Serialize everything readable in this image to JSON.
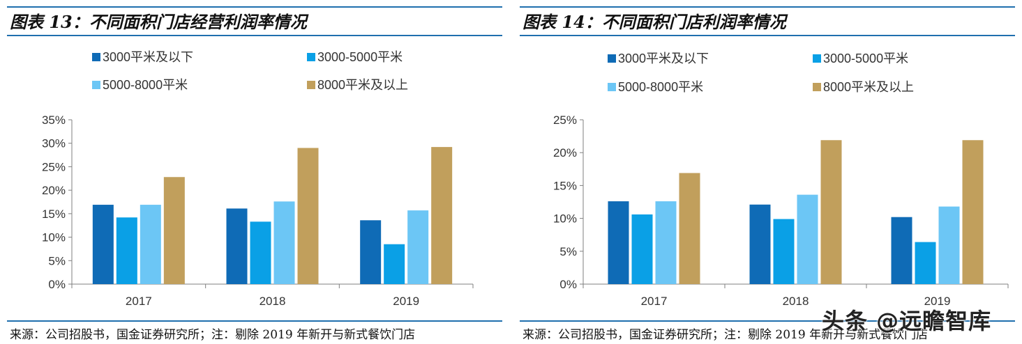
{
  "charts": [
    {
      "title": "图表 13：不同面积门店经营利润率情况",
      "source": "来源：公司招股书，国金证券研究所；注：剔除 2019 年新开与新式餐饮门店",
      "chart_data": {
        "type": "bar",
        "categories": [
          "2017",
          "2018",
          "2019"
        ],
        "series": [
          {
            "name": "3000平米及以下",
            "color": "#0f6bb6",
            "values": [
              16.9,
              16.1,
              13.6
            ]
          },
          {
            "name": "3000-5000平米",
            "color": "#0aa0e6",
            "values": [
              14.2,
              13.3,
              8.5
            ]
          },
          {
            "name": "5000-8000平米",
            "color": "#6cc6f5",
            "values": [
              16.9,
              17.6,
              15.7
            ]
          },
          {
            "name": "8000平米及以上",
            "color": "#c19f5c",
            "values": [
              22.8,
              29.0,
              29.2
            ]
          }
        ],
        "ylim": [
          0,
          35
        ],
        "yticks": [
          0,
          5,
          10,
          15,
          20,
          25,
          30,
          35
        ],
        "ytick_labels": [
          "0%",
          "5%",
          "10%",
          "15%",
          "20%",
          "25%",
          "30%",
          "35%"
        ],
        "xlabel": "",
        "ylabel": "",
        "legend_position": "top"
      }
    },
    {
      "title": "图表 14：不同面积门店利润率情况",
      "source": "来源：公司招股书，国金证券研究所；注：剔除 2019 年新开与新式餐饮门店",
      "chart_data": {
        "type": "bar",
        "categories": [
          "2017",
          "2018",
          "2019"
        ],
        "series": [
          {
            "name": "3000平米及以下",
            "color": "#0f6bb6",
            "values": [
              12.6,
              12.1,
              10.2
            ]
          },
          {
            "name": "3000-5000平米",
            "color": "#0aa0e6",
            "values": [
              10.6,
              9.9,
              6.4
            ]
          },
          {
            "name": "5000-8000平米",
            "color": "#6cc6f5",
            "values": [
              12.6,
              13.6,
              11.8
            ]
          },
          {
            "name": "8000平米及以上",
            "color": "#c19f5c",
            "values": [
              16.9,
              21.9,
              21.9
            ]
          }
        ],
        "ylim": [
          0,
          25
        ],
        "yticks": [
          0,
          5,
          10,
          15,
          20,
          25
        ],
        "ytick_labels": [
          "0%",
          "5%",
          "10%",
          "15%",
          "20%",
          "25%"
        ],
        "xlabel": "",
        "ylabel": "",
        "legend_position": "top"
      }
    }
  ],
  "watermark": "头条 @远瞻智库"
}
